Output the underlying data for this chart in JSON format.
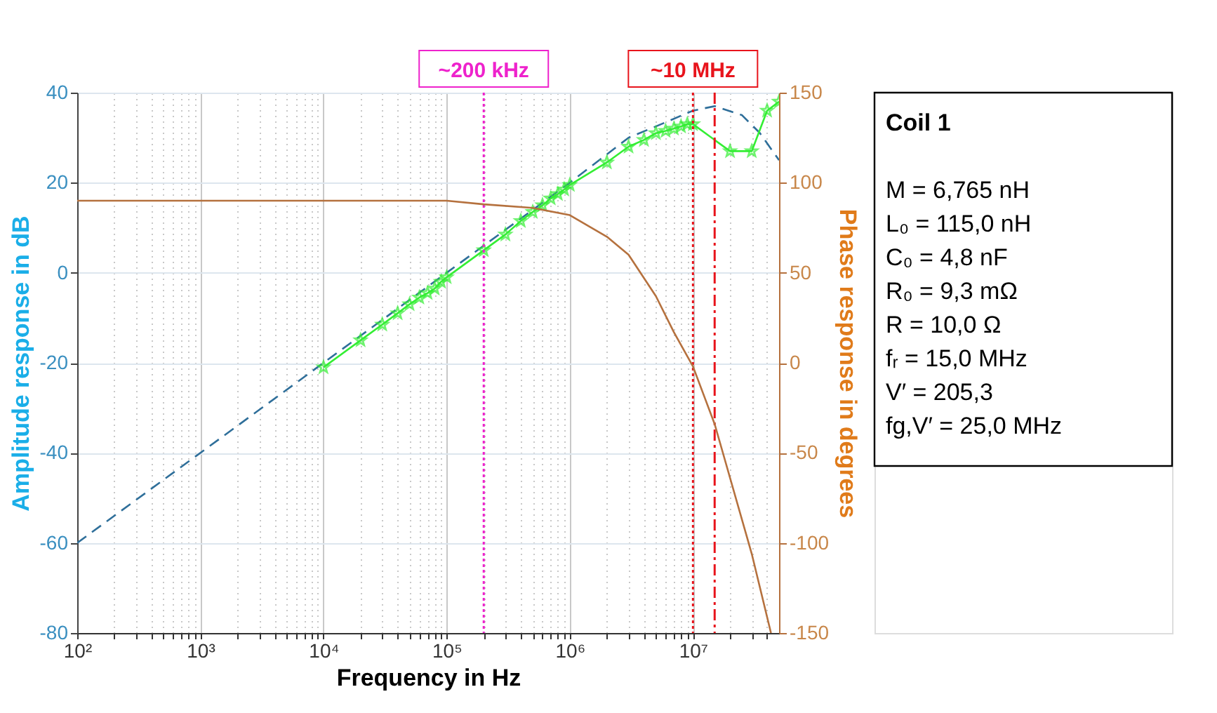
{
  "chart_data": {
    "type": "line",
    "xlabel": "Frequency in Hz",
    "ylabel": "Amplitude response in dB",
    "y2label": "Phase response in degrees",
    "log": "x",
    "grid": true,
    "xlim": [
      100,
      50000000
    ],
    "xticks": [
      {
        "value": 100,
        "label": "10²"
      },
      {
        "value": 200,
        "label": null
      },
      {
        "value": 300,
        "label": null
      },
      {
        "value": 400,
        "label": null
      },
      {
        "value": 500,
        "label": null
      },
      {
        "value": 600,
        "label": null
      },
      {
        "value": 700,
        "label": null
      },
      {
        "value": 800,
        "label": null
      },
      {
        "value": 900,
        "label": null
      },
      {
        "value": 1000,
        "label": "10³"
      },
      {
        "value": 2000,
        "label": null
      },
      {
        "value": 3000,
        "label": null
      },
      {
        "value": 4000,
        "label": null
      },
      {
        "value": 5000,
        "label": null
      },
      {
        "value": 6000,
        "label": null
      },
      {
        "value": 7000,
        "label": null
      },
      {
        "value": 8000,
        "label": null
      },
      {
        "value": 9000,
        "label": null
      },
      {
        "value": 10000,
        "label": "10⁴"
      },
      {
        "value": 20000,
        "label": null
      },
      {
        "value": 30000,
        "label": null
      },
      {
        "value": 40000,
        "label": null
      },
      {
        "value": 50000,
        "label": null
      },
      {
        "value": 60000,
        "label": null
      },
      {
        "value": 70000,
        "label": null
      },
      {
        "value": 80000,
        "label": null
      },
      {
        "value": 90000,
        "label": null
      },
      {
        "value": 100000,
        "label": "10⁵"
      },
      {
        "value": 200000,
        "label": null
      },
      {
        "value": 300000,
        "label": null
      },
      {
        "value": 400000,
        "label": null
      },
      {
        "value": 500000,
        "label": null
      },
      {
        "value": 600000,
        "label": null
      },
      {
        "value": 700000,
        "label": null
      },
      {
        "value": 800000,
        "label": null
      },
      {
        "value": 900000,
        "label": null
      },
      {
        "value": 1000000,
        "label": "10⁶"
      },
      {
        "value": 2000000,
        "label": null
      },
      {
        "value": 3000000,
        "label": null
      },
      {
        "value": 4000000,
        "label": null
      },
      {
        "value": 5000000,
        "label": null
      },
      {
        "value": 6000000,
        "label": null
      },
      {
        "value": 7000000,
        "label": null
      },
      {
        "value": 8000000,
        "label": null
      },
      {
        "value": 9000000,
        "label": null
      },
      {
        "value": 10000000,
        "label": "10⁷"
      },
      {
        "value": 20000000,
        "label": null
      },
      {
        "value": 30000000,
        "label": null
      },
      {
        "value": 40000000,
        "label": null
      }
    ],
    "ylim": [
      -80,
      40
    ],
    "yticks": [
      -80,
      -60,
      -40,
      -20,
      0,
      20,
      40
    ],
    "y2lim": [
      -150,
      150
    ],
    "y2ticks": [
      -150,
      -100,
      -50,
      0,
      50,
      100,
      150
    ],
    "series": [
      {
        "color": "#2f6f9a",
        "line_style": "dashed",
        "marker": "none",
        "x": [
          100,
          10000,
          100000,
          1000000,
          3000000,
          5000000,
          10000000,
          15000000,
          25000000,
          35000000,
          50000000
        ],
        "values": [
          -60,
          -20,
          0,
          20,
          30,
          32.5,
          36,
          37,
          35,
          31,
          25
        ]
      },
      {
        "color": "#33ee33",
        "line_style": "solid",
        "marker": "star",
        "x": [
          10000,
          20000,
          30000,
          40000,
          50000,
          60000,
          70000,
          80000,
          90000,
          100000,
          200000,
          300000,
          400000,
          500000,
          600000,
          700000,
          800000,
          900000,
          1000000,
          2000000,
          3000000,
          4000000,
          5000000,
          6000000,
          7000000,
          8000000,
          9000000,
          10000000,
          20000000,
          30000000,
          40000000,
          50000000
        ],
        "values": [
          -21,
          -15,
          -11.5,
          -9,
          -7,
          -5.5,
          -4.5,
          -3.5,
          -2,
          -1,
          5,
          8.5,
          11.5,
          13.5,
          15,
          16.5,
          17.5,
          18.5,
          19.5,
          24.5,
          28,
          29.5,
          31,
          31.5,
          32,
          32.5,
          33,
          33,
          27,
          27,
          36,
          38
        ]
      },
      {
        "color": "#b5713e",
        "line_style": "solid",
        "marker": "none",
        "axis": "y2",
        "x": [
          100,
          100000,
          200000,
          500000,
          1000000,
          2000000,
          3000000,
          5000000,
          7000000,
          10000000,
          15000000,
          30000000,
          43000000
        ],
        "values": [
          90,
          90,
          88,
          86,
          82,
          70,
          60,
          37,
          17,
          -2,
          -34,
          -106,
          -150
        ]
      }
    ],
    "ref_lines": [
      {
        "axis": "x",
        "value": 200000,
        "label": "~200 kHz",
        "color": "#ee22cc",
        "line_style": "dotted"
      },
      {
        "axis": "x",
        "value": 10000000,
        "label": "~10 MHz",
        "color": "#e8141c",
        "line_style": "dotted"
      },
      {
        "axis": "x",
        "value": 15000000,
        "color": "#e8141c",
        "line_style": "dashdot"
      }
    ],
    "annotations": [
      "Coil 1",
      "M =   6,765 nH",
      "L₀ =  115,0 nH",
      "C₀ =   4,8 nF",
      "R₀ =   9,3 mΩ",
      "R =    10,0 Ω",
      "fᵣ =    15,0 MHz",
      "V′ =  205,3",
      "fg,V′ = 25,0 MHz"
    ]
  }
}
